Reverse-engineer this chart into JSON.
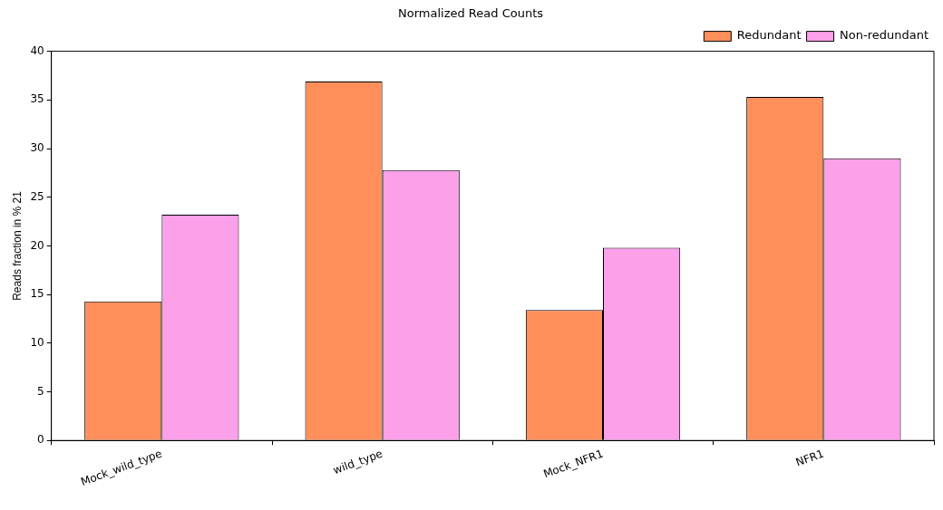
{
  "chart_data": {
    "type": "bar",
    "title": "Normalized Read Counts",
    "ylabel": "Reads fraction in % 21",
    "categories": [
      "Mock_wild_type",
      "wild_type",
      "Mock_NFR1",
      "NFR1"
    ],
    "series": [
      {
        "name": "Redundant",
        "color": "#ff8f5a",
        "values": [
          14.3,
          36.9,
          13.4,
          35.3
        ]
      },
      {
        "name": "Non-redundant",
        "color": "#fca0ea",
        "values": [
          23.2,
          27.8,
          19.8,
          29.0
        ]
      }
    ],
    "ylim": [
      0,
      40
    ],
    "yticks": [
      0,
      5,
      10,
      15,
      20,
      25,
      30,
      35,
      40
    ],
    "grid": false,
    "legend": "top right"
  }
}
